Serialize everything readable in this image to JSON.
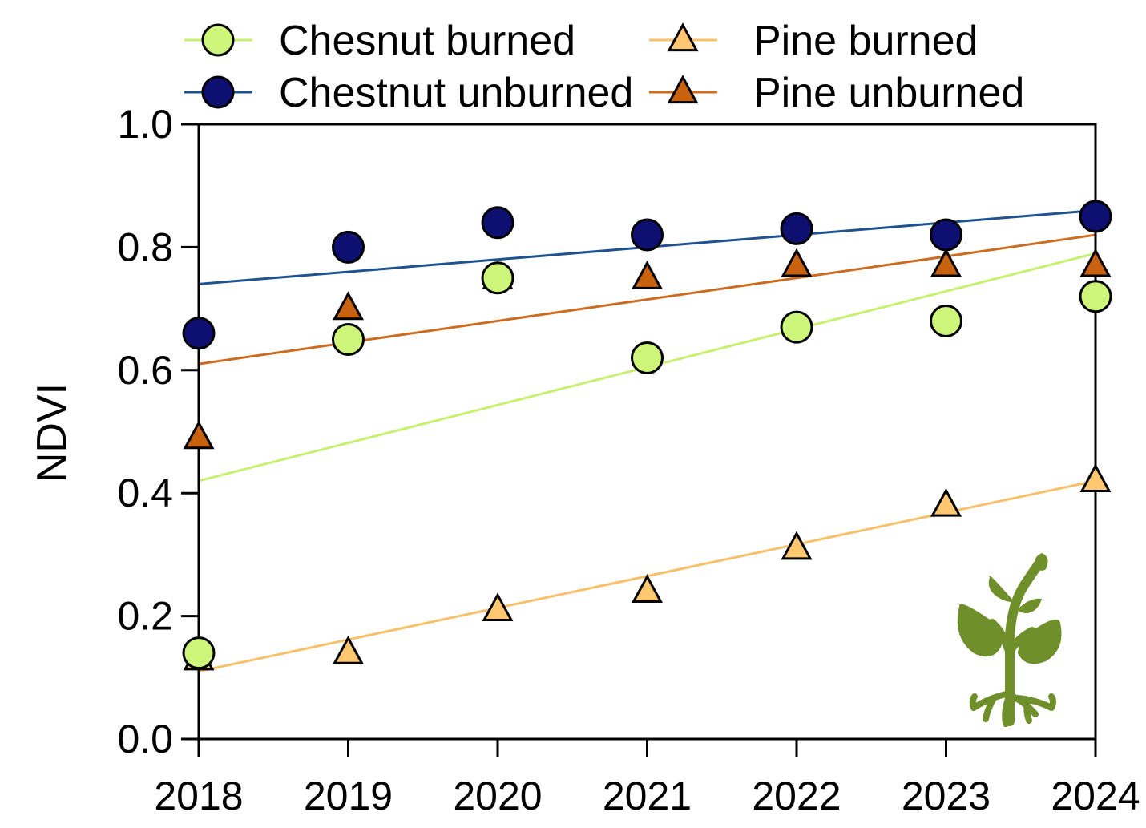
{
  "chart_data": {
    "type": "scatter",
    "title": "",
    "xlabel": "",
    "ylabel": "NDVI",
    "x": [
      2018,
      2019,
      2020,
      2021,
      2022,
      2023,
      2024
    ],
    "xlim": [
      2018,
      2024
    ],
    "ylim": [
      0.0,
      1.0
    ],
    "y_ticks": [
      "0.0",
      "0.2",
      "0.4",
      "0.6",
      "0.8",
      "1.0"
    ],
    "x_ticks": [
      "2018",
      "2019",
      "2020",
      "2021",
      "2022",
      "2023",
      "2024"
    ],
    "grid": false,
    "legend_position": "top",
    "series": [
      {
        "name": "Chesnut burned",
        "marker": "circle",
        "color": "#ccf57a",
        "line_color": "#c7f070",
        "values": [
          0.14,
          0.65,
          0.75,
          0.62,
          0.67,
          0.68,
          0.72
        ],
        "trend": [
          0.42,
          0.79
        ]
      },
      {
        "name": "Chestnut unburned",
        "marker": "circle",
        "color": "#0d1070",
        "line_color": "#1f5390",
        "values": [
          0.66,
          0.8,
          0.84,
          0.82,
          0.83,
          0.82,
          0.85
        ],
        "trend": [
          0.74,
          0.86
        ]
      },
      {
        "name": "Pine burned",
        "marker": "triangle",
        "color": "#ffc870",
        "line_color": "#f8c068",
        "values": [
          0.13,
          0.14,
          0.21,
          0.24,
          0.31,
          0.38,
          0.42
        ],
        "trend": [
          0.11,
          0.42
        ]
      },
      {
        "name": "Pine unburned",
        "marker": "triangle",
        "color": "#c8620f",
        "line_color": "#cc6c20",
        "values": [
          0.49,
          0.7,
          0.75,
          0.75,
          0.77,
          0.77,
          0.77
        ],
        "trend": [
          0.61,
          0.82
        ]
      }
    ],
    "icon": "plant-sprout-icon",
    "icon_color": "#6f8f2a"
  }
}
